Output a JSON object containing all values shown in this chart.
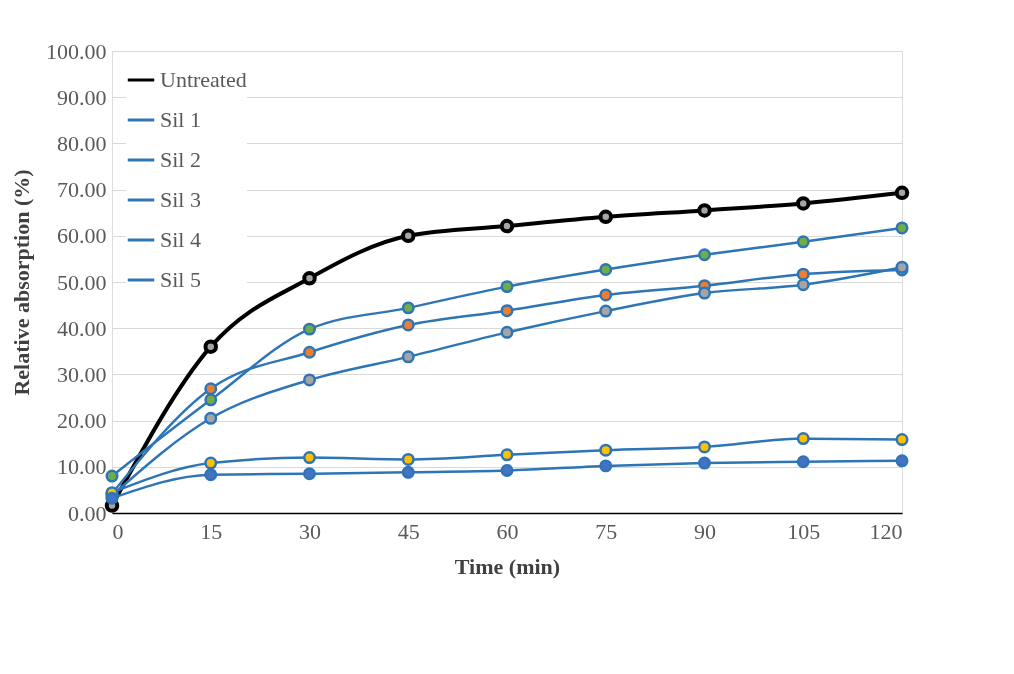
{
  "chart_data": {
    "type": "line",
    "xlabel": "Time (min)",
    "ylabel": "Relative absorption (%)",
    "x": [
      0,
      15,
      30,
      45,
      60,
      75,
      90,
      105,
      120
    ],
    "xlim": [
      0,
      120
    ],
    "xticks": [
      0,
      15,
      30,
      45,
      60,
      75,
      90,
      105,
      120
    ],
    "ylim": [
      0,
      100
    ],
    "yticks": [
      {
        "value": 0,
        "label": "0.00"
      },
      {
        "value": 10,
        "label": "10.00"
      },
      {
        "value": 20,
        "label": "20.00"
      },
      {
        "value": 30,
        "label": "30.00"
      },
      {
        "value": 40,
        "label": "40.00"
      },
      {
        "value": 50,
        "label": "50.00"
      },
      {
        "value": 60,
        "label": "60.00"
      },
      {
        "value": 70,
        "label": "70.00"
      },
      {
        "value": 80,
        "label": "80.00"
      },
      {
        "value": 90,
        "label": "90.00"
      },
      {
        "value": 100,
        "label": "100.00"
      }
    ],
    "grid": "y",
    "legend": "top left",
    "marker": "circle",
    "line_style": "solid",
    "series": [
      {
        "name": "Untreated",
        "color": "#000000",
        "values": [
          1.6,
          36,
          50.8,
          60,
          62.1,
          64.1,
          65.5,
          67.0,
          69.3
        ]
      },
      {
        "name": "Sil 1",
        "color": "#ed7d31",
        "values": [
          4.2,
          26.9,
          34.8,
          40.7,
          43.8,
          47.2,
          49.2,
          51.7,
          52.6
        ]
      },
      {
        "name": "Sil 2",
        "color": "#a5a5a5",
        "values": [
          3.8,
          20.5,
          28.8,
          33.8,
          39.1,
          43.7,
          47.6,
          49.4,
          53.2
        ]
      },
      {
        "name": "Sil 3",
        "color": "#ffc000",
        "values": [
          4.4,
          10.8,
          12.0,
          11.6,
          12.6,
          13.6,
          14.3,
          16.1,
          15.9
        ]
      },
      {
        "name": "Sil 4",
        "color": "#4472c4",
        "values": [
          3.2,
          8.3,
          8.5,
          8.8,
          9.2,
          10.2,
          10.8,
          11.1,
          11.3
        ]
      },
      {
        "name": "Sil 5",
        "color": "#70ad47",
        "values": [
          8.0,
          24.5,
          39.8,
          44.4,
          49.0,
          52.7,
          55.9,
          58.7,
          61.7
        ]
      }
    ]
  }
}
